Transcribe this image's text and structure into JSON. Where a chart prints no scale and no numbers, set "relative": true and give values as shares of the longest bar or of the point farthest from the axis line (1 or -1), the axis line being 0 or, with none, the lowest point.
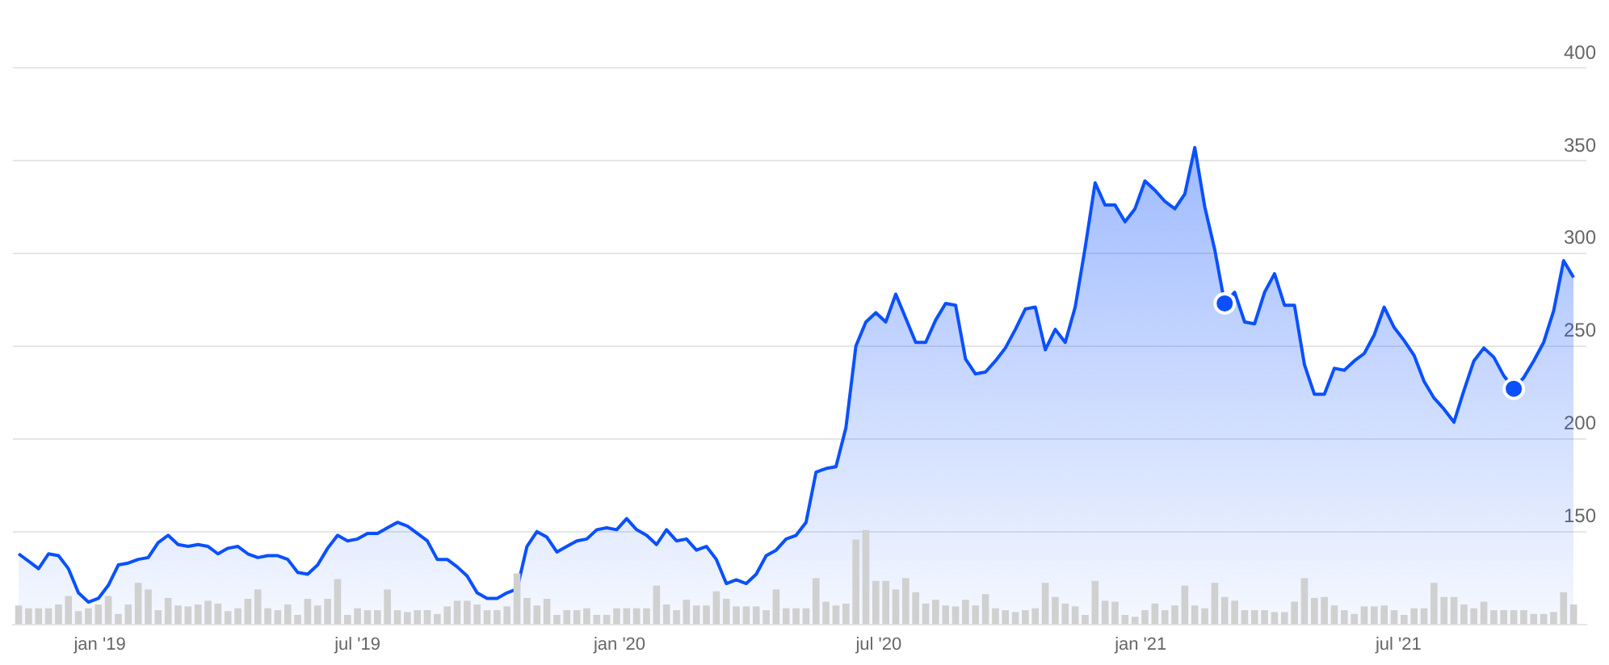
{
  "chart_data": [
    {
      "type": "area",
      "x": [
        "2018-11-05",
        "2018-11-12",
        "2018-11-19",
        "2018-11-26",
        "2018-12-03",
        "2018-12-10",
        "2018-12-17",
        "2018-12-24",
        "2018-12-31",
        "2019-01-07",
        "2019-01-14",
        "2019-01-21",
        "2019-01-28",
        "2019-02-04",
        "2019-02-11",
        "2019-02-18",
        "2019-02-25",
        "2019-03-04",
        "2019-03-11",
        "2019-03-18",
        "2019-03-25",
        "2019-04-01",
        "2019-04-08",
        "2019-04-15",
        "2019-04-22",
        "2019-04-29",
        "2019-05-06",
        "2019-05-13",
        "2019-05-20",
        "2019-05-27",
        "2019-06-03",
        "2019-06-10",
        "2019-06-17",
        "2019-06-24",
        "2019-07-01",
        "2019-07-08",
        "2019-07-15",
        "2019-07-22",
        "2019-07-29",
        "2019-08-05",
        "2019-08-12",
        "2019-08-19",
        "2019-08-26",
        "2019-09-02",
        "2019-09-09",
        "2019-09-16",
        "2019-09-23",
        "2019-09-30",
        "2019-10-07",
        "2019-10-14",
        "2019-10-21",
        "2019-10-28",
        "2019-11-04",
        "2019-11-11",
        "2019-11-18",
        "2019-11-25",
        "2019-12-02",
        "2019-12-09",
        "2019-12-16",
        "2019-12-23",
        "2019-12-30",
        "2020-01-06",
        "2020-01-13",
        "2020-01-20",
        "2020-01-27",
        "2020-02-03",
        "2020-02-10",
        "2020-02-17",
        "2020-02-24",
        "2020-03-02",
        "2020-03-09",
        "2020-03-16",
        "2020-03-23",
        "2020-03-30",
        "2020-04-06",
        "2020-04-13",
        "2020-04-20",
        "2020-04-27",
        "2020-05-04",
        "2020-05-11",
        "2020-05-18",
        "2020-05-25",
        "2020-06-01",
        "2020-06-08",
        "2020-06-15",
        "2020-06-22",
        "2020-06-29",
        "2020-07-06",
        "2020-07-13",
        "2020-07-20",
        "2020-07-27",
        "2020-08-03",
        "2020-08-10",
        "2020-08-17",
        "2020-08-24",
        "2020-08-31",
        "2020-09-07",
        "2020-09-14",
        "2020-09-21",
        "2020-09-28",
        "2020-10-05",
        "2020-10-12",
        "2020-10-19",
        "2020-10-26",
        "2020-11-02",
        "2020-11-09",
        "2020-11-16",
        "2020-11-23",
        "2020-11-30",
        "2020-12-07",
        "2020-12-14",
        "2020-12-21",
        "2020-12-28",
        "2021-01-04",
        "2021-01-11",
        "2021-01-18",
        "2021-01-25",
        "2021-02-01",
        "2021-02-08",
        "2021-02-15",
        "2021-02-22",
        "2021-03-01",
        "2021-03-08",
        "2021-03-15",
        "2021-03-22",
        "2021-03-29",
        "2021-04-05",
        "2021-04-12",
        "2021-04-19",
        "2021-04-26",
        "2021-05-03",
        "2021-05-10",
        "2021-05-17",
        "2021-05-24",
        "2021-05-31",
        "2021-06-07",
        "2021-06-14",
        "2021-06-21",
        "2021-06-28",
        "2021-07-05",
        "2021-07-12",
        "2021-07-19",
        "2021-07-26",
        "2021-08-02",
        "2021-08-09",
        "2021-08-16",
        "2021-08-23",
        "2021-08-30",
        "2021-09-06",
        "2021-09-13",
        "2021-09-20",
        "2021-09-27",
        "2021-10-04",
        "2021-10-11",
        "2021-10-18",
        "2021-10-25",
        "2021-11-01"
      ],
      "series": [
        {
          "color": "#0a50ff",
          "values": [
            138,
            134,
            130,
            138,
            137,
            130,
            117,
            112,
            114,
            121,
            132,
            133,
            135,
            136,
            144,
            148,
            143,
            142,
            143,
            142,
            138,
            141,
            142,
            138,
            136,
            137,
            137,
            135,
            128,
            127,
            132,
            141,
            148,
            145,
            146,
            149,
            149,
            152,
            155,
            153,
            149,
            145,
            135,
            135,
            131,
            126,
            117,
            114,
            114,
            117,
            119,
            142,
            150,
            147,
            139,
            142,
            145,
            146,
            151,
            152,
            151,
            157,
            151,
            148,
            143,
            151,
            145,
            146,
            140,
            142,
            135,
            122,
            124,
            122,
            127,
            137,
            140,
            146,
            148,
            155,
            182,
            184,
            185,
            206,
            250,
            263,
            268,
            263,
            278,
            265,
            252,
            252,
            264,
            273,
            272,
            243,
            235,
            236,
            242,
            249,
            259,
            270,
            271,
            248,
            259,
            252,
            271,
            303,
            338,
            326,
            326,
            317,
            324,
            339,
            334,
            328,
            324,
            332,
            357,
            325,
            302,
            273,
            279,
            263,
            262,
            279,
            289,
            272,
            272,
            240,
            224,
            224,
            238,
            237,
            242,
            246,
            256,
            271,
            260,
            253,
            245,
            231,
            222,
            216,
            209,
            226,
            242,
            249,
            244,
            234,
            227,
            233,
            242,
            252,
            269,
            296,
            287
          ]
        },
        {
          "type": "scatter",
          "color": "#0a50ff",
          "marker": "circle",
          "x": [
            "2021-03-01",
            "2021-09-20"
          ],
          "values": [
            273,
            227
          ]
        }
      ],
      "xlim": [
        "2018-11-01",
        "2021-11-10"
      ],
      "xticks": [
        {
          "value": "2019-01-01",
          "label": "jan '19"
        },
        {
          "value": "2019-07-01",
          "label": "jul '19"
        },
        {
          "value": "2020-01-01",
          "label": "jan '20"
        },
        {
          "value": "2020-07-01",
          "label": "jul '20"
        },
        {
          "value": "2021-01-01",
          "label": "jan '21"
        },
        {
          "value": "2021-07-01",
          "label": "jul '21"
        }
      ],
      "ylim": [
        100,
        400
      ],
      "yticks": [
        150,
        200,
        250,
        300,
        350,
        400
      ],
      "grid": "y",
      "legend": false
    },
    {
      "type": "bar",
      "relative": true,
      "xlim": [
        "2018-11-01",
        "2021-11-10"
      ],
      "series": [
        {
          "color": "#d0d0d0",
          "values": [
            0.2,
            0.17,
            0.17,
            0.17,
            0.21,
            0.3,
            0.14,
            0.17,
            0.21,
            0.3,
            0.11,
            0.21,
            0.44,
            0.37,
            0.15,
            0.28,
            0.2,
            0.19,
            0.21,
            0.25,
            0.22,
            0.14,
            0.17,
            0.27,
            0.37,
            0.17,
            0.15,
            0.21,
            0.1,
            0.27,
            0.2,
            0.27,
            0.48,
            0.1,
            0.17,
            0.15,
            0.15,
            0.37,
            0.15,
            0.13,
            0.15,
            0.15,
            0.11,
            0.19,
            0.25,
            0.25,
            0.21,
            0.15,
            0.15,
            0.19,
            0.54,
            0.28,
            0.2,
            0.27,
            0.1,
            0.15,
            0.15,
            0.17,
            0.1,
            0.1,
            0.17,
            0.17,
            0.17,
            0.17,
            0.41,
            0.21,
            0.15,
            0.26,
            0.2,
            0.2,
            0.35,
            0.27,
            0.19,
            0.19,
            0.19,
            0.15,
            0.37,
            0.17,
            0.17,
            0.17,
            0.49,
            0.24,
            0.2,
            0.22,
            0.9,
            1,
            0.46,
            0.46,
            0.37,
            0.49,
            0.34,
            0.22,
            0.26,
            0.2,
            0.19,
            0.26,
            0.2,
            0.32,
            0.17,
            0.15,
            0.13,
            0.15,
            0.17,
            0.44,
            0.29,
            0.22,
            0.19,
            0.1,
            0.46,
            0.25,
            0.24,
            0.1,
            0.08,
            0.15,
            0.22,
            0.15,
            0.2,
            0.41,
            0.2,
            0.17,
            0.44,
            0.29,
            0.25,
            0.15,
            0.15,
            0.15,
            0.13,
            0.13,
            0.24,
            0.49,
            0.28,
            0.29,
            0.2,
            0.15,
            0.11,
            0.19,
            0.19,
            0.2,
            0.15,
            0.1,
            0.17,
            0.17,
            0.44,
            0.29,
            0.29,
            0.21,
            0.17,
            0.24,
            0.15,
            0.15,
            0.15,
            0.15,
            0.11,
            0.11,
            0.13,
            0.34,
            0.21
          ]
        }
      ],
      "x": [
        "2018-11-05",
        "2018-11-12",
        "2018-11-19",
        "2018-11-26",
        "2018-12-03",
        "2018-12-10",
        "2018-12-17",
        "2018-12-24",
        "2018-12-31",
        "2019-01-07",
        "2019-01-14",
        "2019-01-21",
        "2019-01-28",
        "2019-02-04",
        "2019-02-11",
        "2019-02-18",
        "2019-02-25",
        "2019-03-04",
        "2019-03-11",
        "2019-03-18",
        "2019-03-25",
        "2019-04-01",
        "2019-04-08",
        "2019-04-15",
        "2019-04-22",
        "2019-04-29",
        "2019-05-06",
        "2019-05-13",
        "2019-05-20",
        "2019-05-27",
        "2019-06-03",
        "2019-06-10",
        "2019-06-17",
        "2019-06-24",
        "2019-07-01",
        "2019-07-08",
        "2019-07-15",
        "2019-07-22",
        "2019-07-29",
        "2019-08-05",
        "2019-08-12",
        "2019-08-19",
        "2019-08-26",
        "2019-09-02",
        "2019-09-09",
        "2019-09-16",
        "2019-09-23",
        "2019-09-30",
        "2019-10-07",
        "2019-10-14",
        "2019-10-21",
        "2019-10-28",
        "2019-11-04",
        "2019-11-11",
        "2019-11-18",
        "2019-11-25",
        "2019-12-02",
        "2019-12-09",
        "2019-12-16",
        "2019-12-23",
        "2019-12-30",
        "2020-01-06",
        "2020-01-13",
        "2020-01-20",
        "2020-01-27",
        "2020-02-03",
        "2020-02-10",
        "2020-02-17",
        "2020-02-24",
        "2020-03-02",
        "2020-03-09",
        "2020-03-16",
        "2020-03-23",
        "2020-03-30",
        "2020-04-06",
        "2020-04-13",
        "2020-04-20",
        "2020-04-27",
        "2020-05-04",
        "2020-05-11",
        "2020-05-18",
        "2020-05-25",
        "2020-06-01",
        "2020-06-08",
        "2020-06-15",
        "2020-06-22",
        "2020-06-29",
        "2020-07-06",
        "2020-07-13",
        "2020-07-20",
        "2020-07-27",
        "2020-08-03",
        "2020-08-10",
        "2020-08-17",
        "2020-08-24",
        "2020-08-31",
        "2020-09-07",
        "2020-09-14",
        "2020-09-21",
        "2020-09-28",
        "2020-10-05",
        "2020-10-12",
        "2020-10-19",
        "2020-10-26",
        "2020-11-02",
        "2020-11-09",
        "2020-11-16",
        "2020-11-23",
        "2020-11-30",
        "2020-12-07",
        "2020-12-14",
        "2020-12-21",
        "2020-12-28",
        "2021-01-04",
        "2021-01-11",
        "2021-01-18",
        "2021-01-25",
        "2021-02-01",
        "2021-02-08",
        "2021-02-15",
        "2021-02-22",
        "2021-03-01",
        "2021-03-08",
        "2021-03-15",
        "2021-03-22",
        "2021-03-29",
        "2021-04-05",
        "2021-04-12",
        "2021-04-19",
        "2021-04-26",
        "2021-05-03",
        "2021-05-10",
        "2021-05-17",
        "2021-05-24",
        "2021-05-31",
        "2021-06-07",
        "2021-06-14",
        "2021-06-21",
        "2021-06-28",
        "2021-07-05",
        "2021-07-12",
        "2021-07-19",
        "2021-07-26",
        "2021-08-02",
        "2021-08-09",
        "2021-08-16",
        "2021-08-23",
        "2021-08-30",
        "2021-09-06",
        "2021-09-13",
        "2021-09-20",
        "2021-09-27",
        "2021-10-04",
        "2021-10-11",
        "2021-10-18",
        "2021-10-25",
        "2021-11-01"
      ]
    }
  ]
}
